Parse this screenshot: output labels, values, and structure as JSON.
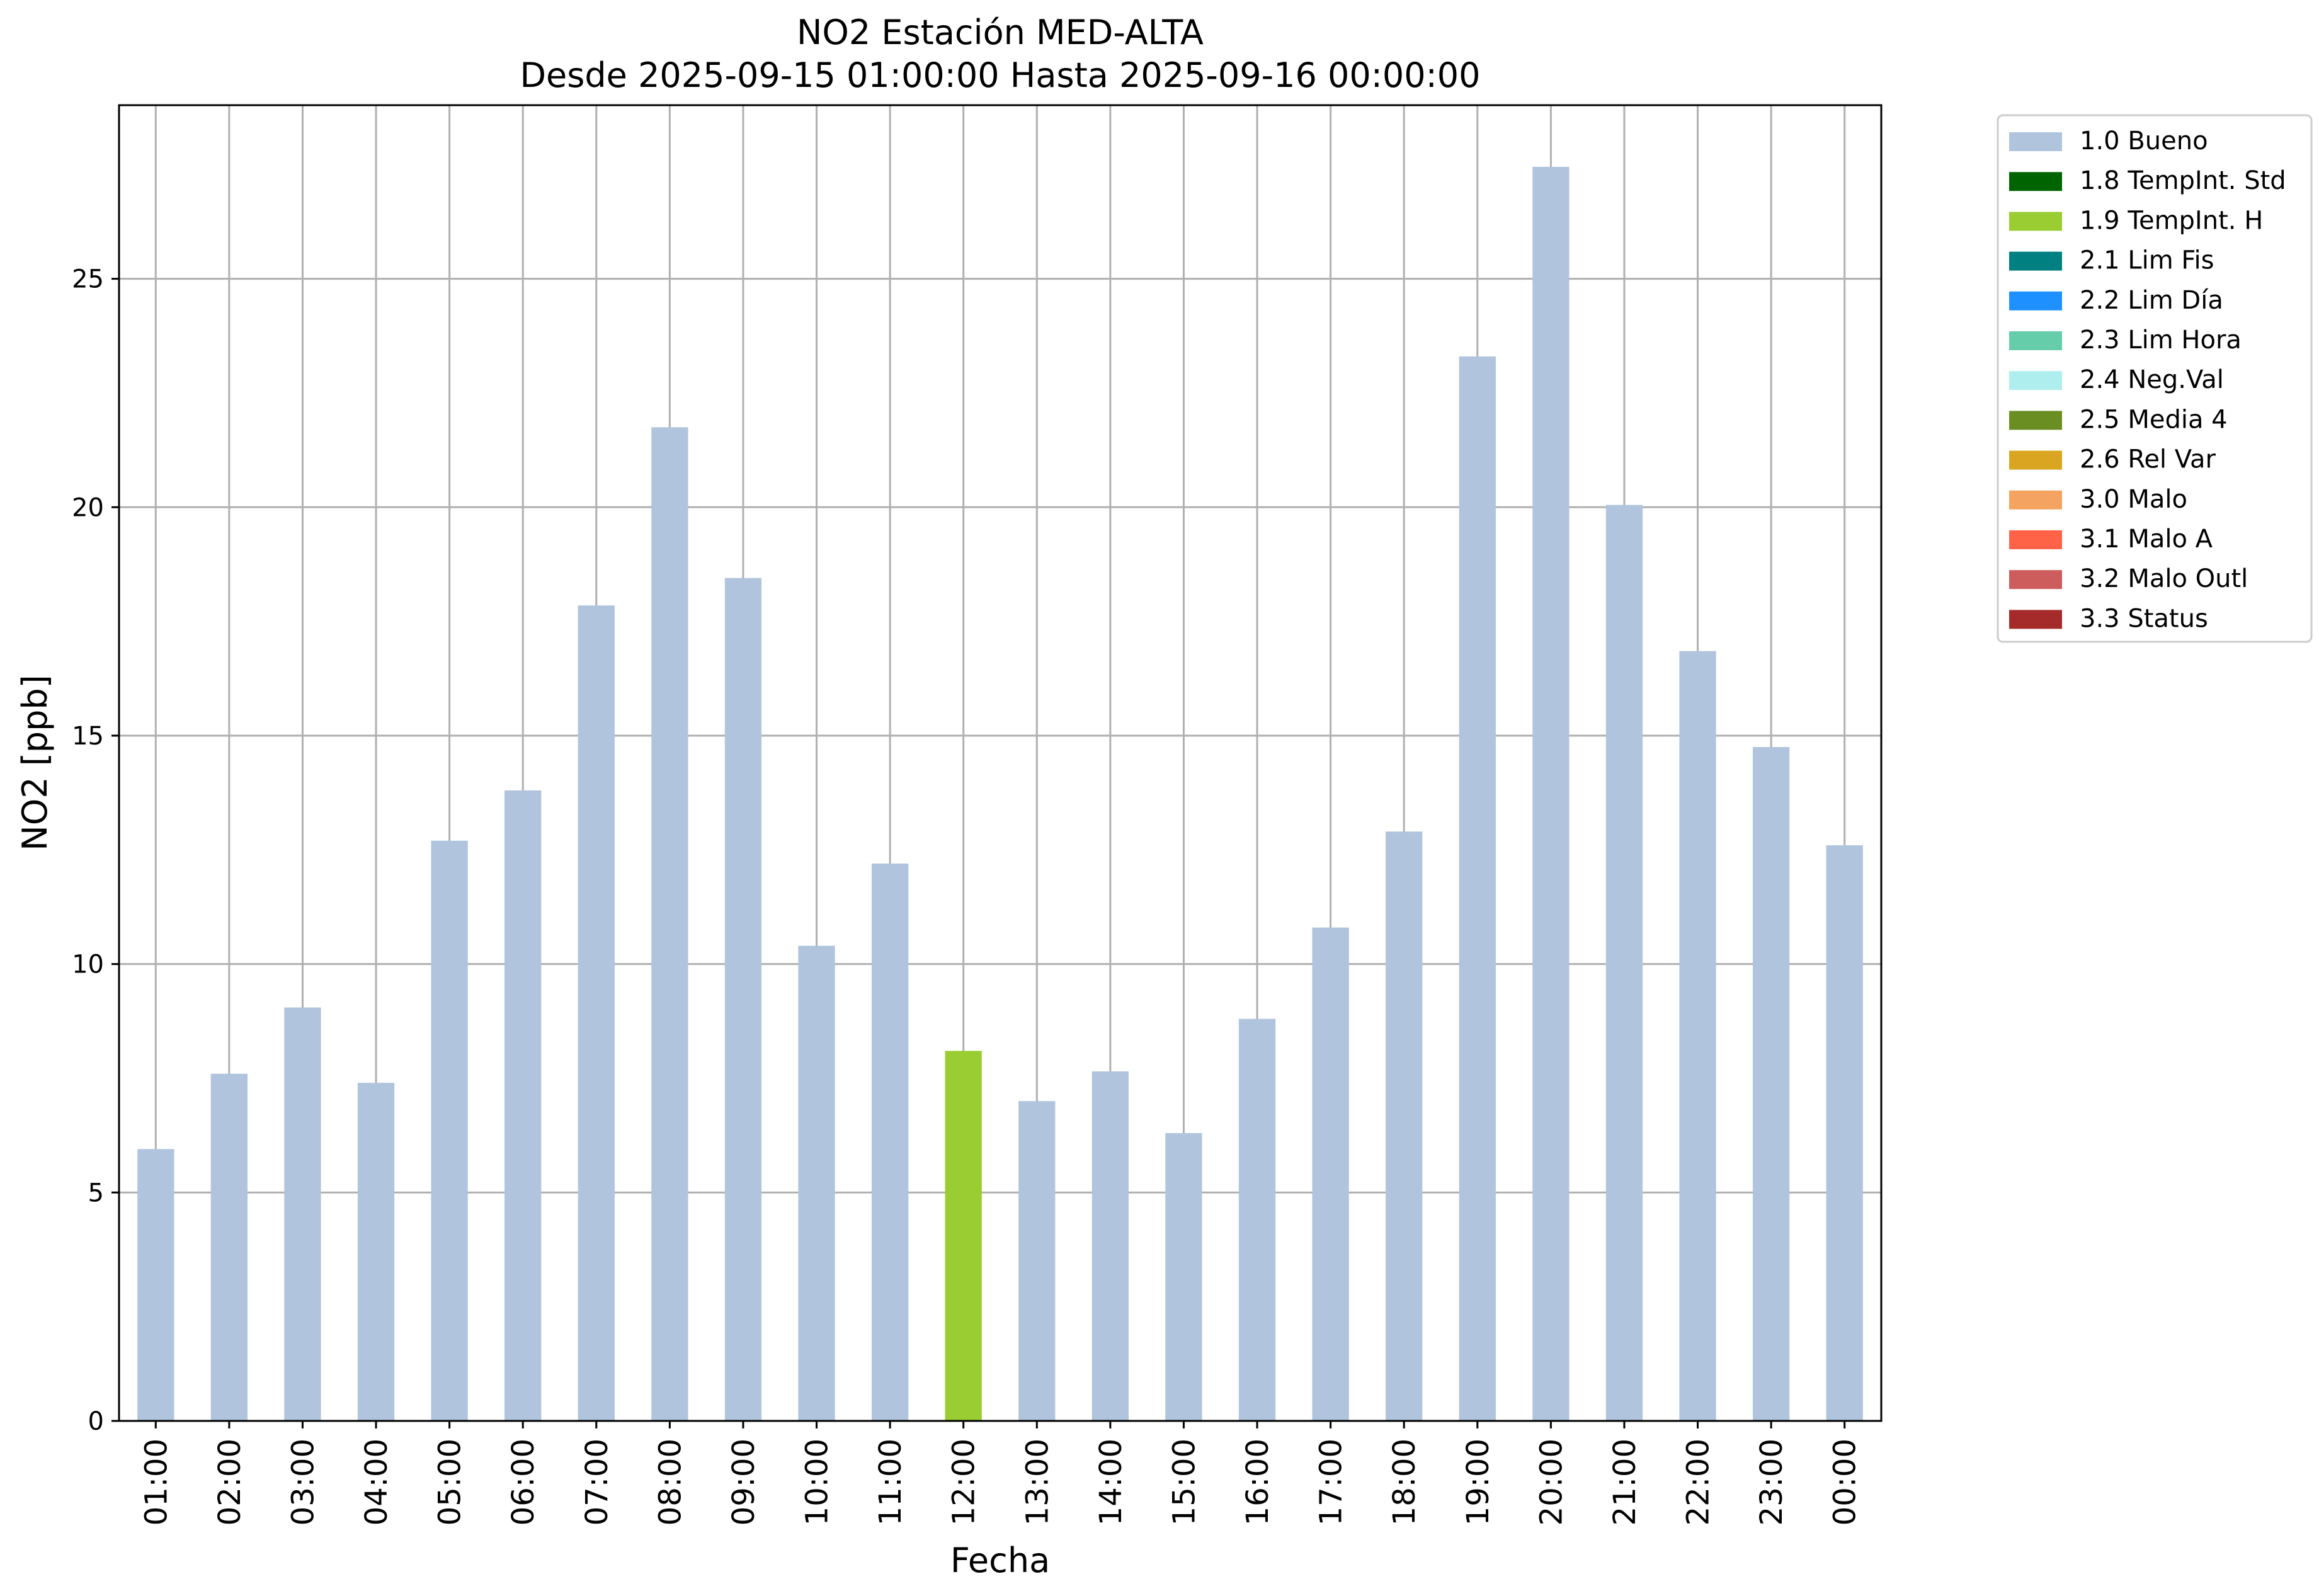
{
  "chart_data": {
    "type": "bar",
    "title": "NO2 Estación MED-ALTA",
    "subtitle": "Desde 2025-09-15 01:00:00 Hasta 2025-09-16 00:00:00",
    "xlabel": "Fecha",
    "ylabel": "NO2 [ppb]",
    "ylim": [
      0,
      28.8
    ],
    "yticks": [
      0,
      5,
      10,
      15,
      20,
      25
    ],
    "grid": true,
    "legend_position": "outside-top-right",
    "categories": [
      "01:00",
      "02:00",
      "03:00",
      "04:00",
      "05:00",
      "06:00",
      "07:00",
      "08:00",
      "09:00",
      "10:00",
      "11:00",
      "12:00",
      "13:00",
      "14:00",
      "15:00",
      "16:00",
      "17:00",
      "18:00",
      "19:00",
      "20:00",
      "21:00",
      "22:00",
      "23:00",
      "00:00"
    ],
    "values": [
      5.95,
      7.6,
      9.05,
      7.4,
      12.7,
      13.8,
      17.85,
      21.75,
      18.45,
      10.4,
      12.2,
      8.1,
      7.0,
      7.65,
      6.3,
      8.8,
      10.8,
      12.9,
      23.3,
      27.45,
      20.05,
      16.85,
      14.75,
      12.6
    ],
    "bar_flags": [
      "1.0 Bueno",
      "1.0 Bueno",
      "1.0 Bueno",
      "1.0 Bueno",
      "1.0 Bueno",
      "1.0 Bueno",
      "1.0 Bueno",
      "1.0 Bueno",
      "1.0 Bueno",
      "1.0 Bueno",
      "1.0 Bueno",
      "1.9 TempInt. H",
      "1.0 Bueno",
      "1.0 Bueno",
      "1.0 Bueno",
      "1.0 Bueno",
      "1.0 Bueno",
      "1.0 Bueno",
      "1.0 Bueno",
      "1.0 Bueno",
      "1.0 Bueno",
      "1.0 Bueno",
      "1.0 Bueno",
      "1.0 Bueno"
    ],
    "legend": [
      {
        "label": "1.0 Bueno",
        "color": "#b0c4de"
      },
      {
        "label": "1.8 TempInt. Std",
        "color": "#006400"
      },
      {
        "label": "1.9 TempInt. H",
        "color": "#9acd32"
      },
      {
        "label": "2.1 Lim Fis",
        "color": "#008080"
      },
      {
        "label": "2.2 Lim Día",
        "color": "#1e90ff"
      },
      {
        "label": "2.3 Lim Hora",
        "color": "#66cdaa"
      },
      {
        "label": "2.4 Neg.Val",
        "color": "#afeeee"
      },
      {
        "label": "2.5 Media 4",
        "color": "#6b8e23"
      },
      {
        "label": "2.6 Rel Var",
        "color": "#daa520"
      },
      {
        "label": "3.0 Malo",
        "color": "#f4a460"
      },
      {
        "label": "3.1 Malo A",
        "color": "#ff6347"
      },
      {
        "label": "3.2 Malo Outl",
        "color": "#cd5c5c"
      },
      {
        "label": "3.3 Status",
        "color": "#a52a2a"
      }
    ]
  }
}
